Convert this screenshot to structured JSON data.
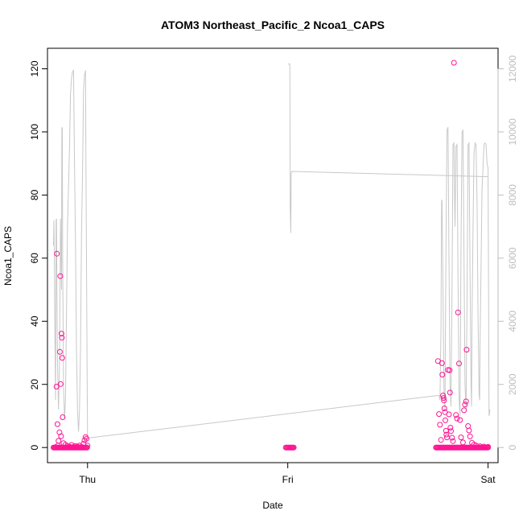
{
  "chart_data": {
    "type": "scatter",
    "title": "ATOM3 Northeast_Pacific_2 Ncoa1_CAPS",
    "xlabel": "Date",
    "ylabel": "Ncoa1_CAPS",
    "x_ticks": [
      "Thu",
      "Fri",
      "Sat"
    ],
    "xlim": [
      -0.2,
      2.05
    ],
    "ylim_left": [
      -4.8,
      126.5
    ],
    "ylim_right": [
      -480,
      12650
    ],
    "y_ticks_left": [
      "0",
      "20",
      "40",
      "60",
      "80",
      "100",
      "120"
    ],
    "y_ticks_right": [
      "0",
      "2000",
      "4000",
      "6000",
      "8000",
      "10000",
      "12000"
    ],
    "grid": false,
    "legend": "none",
    "colors": {
      "points": "#ff1493",
      "secondary_line": "#c8c8c8",
      "axis": "#000000",
      "right_axis": "#bdbdbd"
    },
    "series": [
      {
        "type": "points",
        "axis": "left",
        "points": [
          [
            -0.16,
            0.1
          ],
          [
            -0.155,
            19.3
          ],
          [
            -0.153,
            61.4
          ],
          [
            -0.15,
            7.4
          ],
          [
            -0.148,
            0.6
          ],
          [
            -0.145,
            2.1
          ],
          [
            -0.14,
            4.8
          ],
          [
            -0.138,
            30.3
          ],
          [
            -0.136,
            54.3
          ],
          [
            -0.134,
            20.1
          ],
          [
            -0.132,
            3.6
          ],
          [
            -0.13,
            36.1
          ],
          [
            -0.128,
            34.8
          ],
          [
            -0.126,
            28.4
          ],
          [
            -0.124,
            9.6
          ],
          [
            -0.12,
            1.4
          ],
          [
            -0.11,
            0.9
          ],
          [
            -0.1,
            0.4
          ],
          [
            -0.09,
            0.3
          ],
          [
            -0.08,
            0.8
          ],
          [
            -0.07,
            0.2
          ],
          [
            -0.06,
            0.5
          ],
          [
            -0.05,
            0.3
          ],
          [
            -0.04,
            0.6
          ],
          [
            -0.03,
            0.2
          ],
          [
            -0.02,
            1.2
          ],
          [
            -0.015,
            2.3
          ],
          [
            -0.01,
            3.3
          ],
          [
            -0.005,
            2.8
          ],
          [
            0.0,
            0.6
          ],
          [
            1.75,
            27.4
          ],
          [
            1.755,
            10.6
          ],
          [
            1.76,
            7.2
          ],
          [
            1.765,
            2.4
          ],
          [
            1.77,
            26.7
          ],
          [
            1.772,
            23.1
          ],
          [
            1.775,
            16.5
          ],
          [
            1.778,
            15.7
          ],
          [
            1.78,
            14.9
          ],
          [
            1.782,
            12.4
          ],
          [
            1.785,
            11.2
          ],
          [
            1.787,
            8.6
          ],
          [
            1.79,
            5.3
          ],
          [
            1.792,
            4.1
          ],
          [
            1.795,
            3.2
          ],
          [
            1.8,
            24.6
          ],
          [
            1.805,
            10.5
          ],
          [
            1.808,
            24.5
          ],
          [
            1.81,
            17.4
          ],
          [
            1.812,
            6.3
          ],
          [
            1.815,
            5.2
          ],
          [
            1.82,
            3.1
          ],
          [
            1.825,
            2.0
          ],
          [
            1.83,
            121.9
          ],
          [
            1.84,
            10.3
          ],
          [
            1.845,
            9.2
          ],
          [
            1.85,
            42.8
          ],
          [
            1.855,
            26.6
          ],
          [
            1.86,
            8.7
          ],
          [
            1.865,
            3.2
          ],
          [
            1.875,
            1.6
          ],
          [
            1.88,
            11.8
          ],
          [
            1.885,
            13.6
          ],
          [
            1.89,
            14.6
          ],
          [
            1.893,
            31.0
          ],
          [
            1.9,
            6.8
          ],
          [
            1.905,
            5.4
          ],
          [
            1.91,
            3.5
          ],
          [
            1.92,
            1.5
          ],
          [
            1.93,
            0.9
          ],
          [
            1.94,
            0.6
          ],
          [
            1.96,
            0.4
          ],
          [
            1.98,
            0.3
          ],
          [
            2.0,
            0.2
          ]
        ]
      },
      {
        "type": "line",
        "axis": "right",
        "points": [
          [
            -0.17,
            6400
          ],
          [
            -0.168,
            7200
          ],
          [
            -0.166,
            6000
          ],
          [
            -0.164,
            4200
          ],
          [
            -0.16,
            1500
          ],
          [
            -0.157,
            7200
          ],
          [
            -0.155,
            7250
          ],
          [
            -0.152,
            4500
          ],
          [
            -0.15,
            2800
          ],
          [
            -0.145,
            1200
          ],
          [
            -0.14,
            2500
          ],
          [
            -0.135,
            7250
          ],
          [
            -0.13,
            5000
          ],
          [
            -0.128,
            10100
          ],
          [
            -0.126,
            10150
          ],
          [
            -0.124,
            6000
          ],
          [
            -0.12,
            2000
          ],
          [
            -0.115,
            900
          ],
          [
            -0.11,
            1500
          ],
          [
            -0.105,
            4200
          ],
          [
            -0.1,
            7000
          ],
          [
            -0.09,
            9500
          ],
          [
            -0.085,
            11200
          ],
          [
            -0.08,
            11700
          ],
          [
            -0.075,
            11900
          ],
          [
            -0.07,
            11950
          ],
          [
            -0.065,
            9000
          ],
          [
            -0.06,
            6500
          ],
          [
            -0.055,
            3000
          ],
          [
            -0.05,
            1200
          ],
          [
            -0.045,
            500
          ],
          [
            -0.04,
            1200
          ],
          [
            -0.035,
            3200
          ],
          [
            -0.03,
            6800
          ],
          [
            -0.025,
            8700
          ],
          [
            -0.02,
            11300
          ],
          [
            -0.015,
            11800
          ],
          [
            -0.01,
            11950
          ],
          [
            -0.008,
            9000
          ],
          [
            -0.006,
            6800
          ],
          [
            -0.004,
            4500
          ],
          [
            -0.002,
            2200
          ],
          [
            0.0,
            300
          ],
          [
            0.003,
            300
          ],
          [
            1.75,
            1650
          ],
          [
            1.755,
            1650
          ],
          [
            1.76,
            1500
          ],
          [
            1.765,
            3800
          ],
          [
            1.768,
            7800
          ],
          [
            1.77,
            7850
          ],
          [
            1.775,
            5000
          ],
          [
            1.78,
            1800
          ],
          [
            1.785,
            1200
          ],
          [
            1.79,
            6500
          ],
          [
            1.795,
            10050
          ],
          [
            1.8,
            10150
          ],
          [
            1.805,
            6000
          ],
          [
            1.81,
            2000
          ],
          [
            1.815,
            1300
          ],
          [
            1.82,
            5000
          ],
          [
            1.825,
            9600
          ],
          [
            1.83,
            9650
          ],
          [
            1.835,
            7000
          ],
          [
            1.84,
            9550
          ],
          [
            1.845,
            9600
          ],
          [
            1.85,
            5500
          ],
          [
            1.855,
            1600
          ],
          [
            1.86,
            1000
          ],
          [
            1.865,
            6500
          ],
          [
            1.87,
            10000
          ],
          [
            1.875,
            10050
          ],
          [
            1.88,
            6000
          ],
          [
            1.885,
            2000
          ],
          [
            1.89,
            1200
          ],
          [
            1.895,
            4500
          ],
          [
            1.9,
            9600
          ],
          [
            1.905,
            9650
          ],
          [
            1.91,
            5500
          ],
          [
            1.915,
            2000
          ],
          [
            1.918,
            1300
          ],
          [
            1.92,
            4000
          ],
          [
            1.925,
            7000
          ],
          [
            1.93,
            9300
          ],
          [
            1.935,
            9650
          ],
          [
            1.94,
            9600
          ],
          [
            1.945,
            7800
          ],
          [
            1.95,
            4200
          ],
          [
            1.955,
            1700
          ],
          [
            1.958,
            1500
          ],
          [
            1.96,
            3200
          ],
          [
            1.97,
            8200
          ],
          [
            1.98,
            9600
          ],
          [
            1.985,
            9650
          ],
          [
            1.99,
            9600
          ],
          [
            1.995,
            9000
          ],
          [
            2.0,
            8850
          ],
          [
            2.005,
            1000
          ],
          [
            2.01,
            1200
          ]
        ]
      },
      {
        "type": "line",
        "axis": "right",
        "points": [
          [
            1.0,
            12150
          ],
          [
            1.01,
            12150
          ],
          [
            1.012,
            7600
          ],
          [
            1.015,
            6800
          ],
          [
            1.017,
            8700
          ],
          [
            1.02,
            8750
          ],
          [
            2.0,
            8580
          ]
        ]
      }
    ]
  }
}
